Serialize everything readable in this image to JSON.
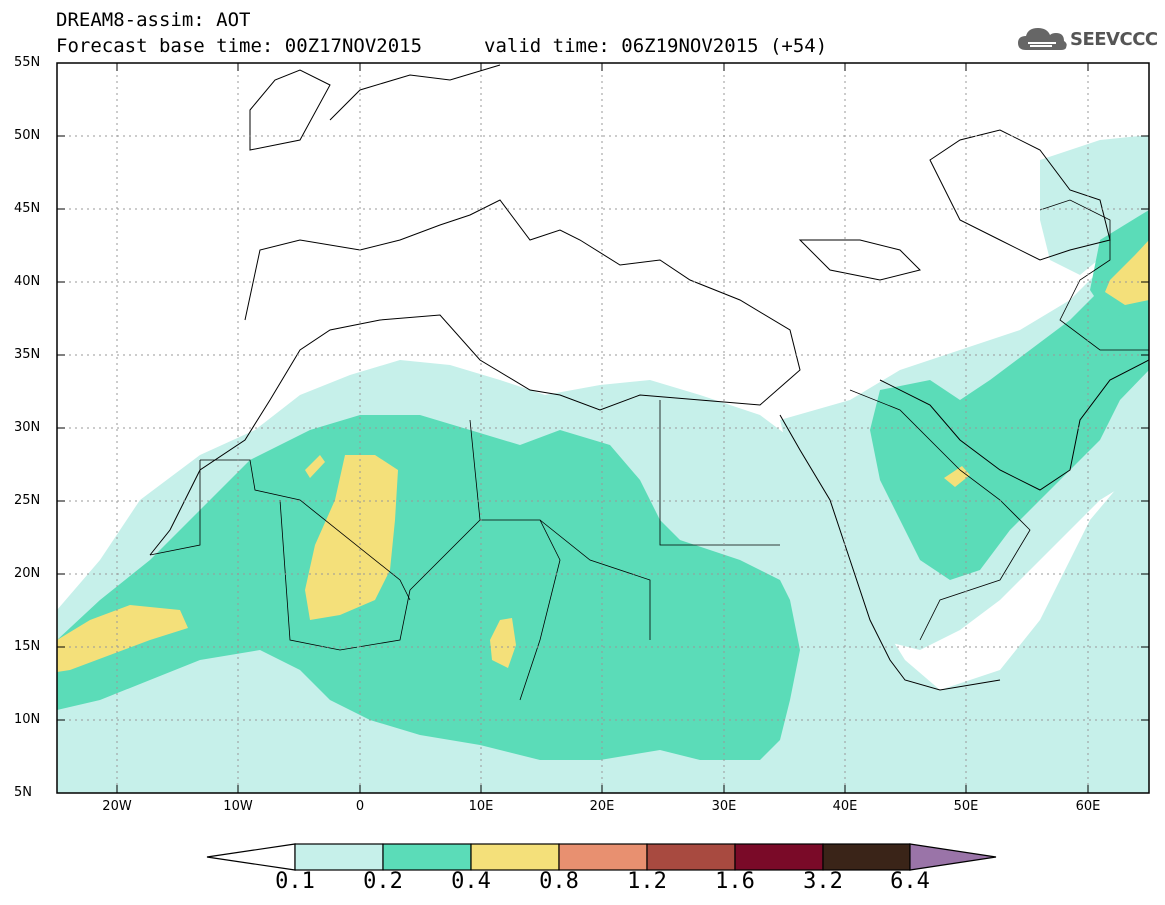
{
  "header": {
    "title_line_1": "DREAM8-assim: AOT",
    "title_line_2": "Forecast base time: 00Z17NOV2015",
    "valid_time": "valid time: 06Z19NOV2015 (+54)"
  },
  "logo": {
    "icon": "cloud-icon",
    "text": "SEEVCCC"
  },
  "map": {
    "projection": "lat-lon",
    "lon_range": [
      -25,
      65
    ],
    "lat_range": [
      5,
      55
    ],
    "gridlines": "dotted",
    "lat_ticks": [
      "55N",
      "50N",
      "45N",
      "40N",
      "35N",
      "30N",
      "25N",
      "20N",
      "15N",
      "10N",
      "5N"
    ],
    "lon_ticks": [
      "20W",
      "10W",
      "0",
      "10E",
      "20E",
      "30E",
      "40E",
      "50E",
      "60E"
    ]
  },
  "colorbar": {
    "labels": [
      "0.1",
      "0.2",
      "0.4",
      "0.8",
      "1.2",
      "1.6",
      "3.2",
      "6.4"
    ],
    "colors": [
      "#c6f0ea",
      "#5bdcb8",
      "#f4e07a",
      "#e89070",
      "#a84a40",
      "#7a0a28",
      "#3a2418",
      "#9a74a8"
    ],
    "below_color": "#ffffff"
  }
}
